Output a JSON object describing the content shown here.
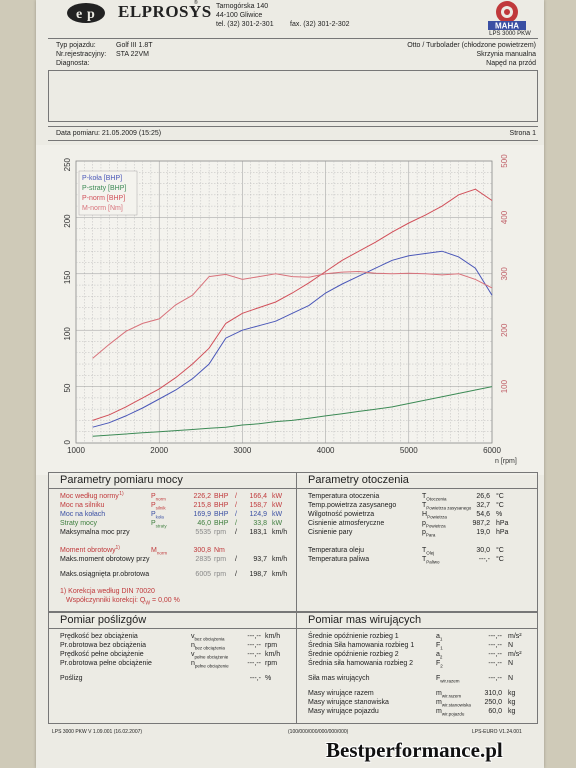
{
  "header": {
    "company": "ELPROSYS",
    "company_small": "®",
    "address1": "Tarnogórska 140",
    "address2": "44-100 Gliwice",
    "phone": "tel. (32) 301-2-301",
    "fax": "fax. (32) 301-2-302",
    "brand": "MAHA",
    "lps": "LPS 3000 PKW"
  },
  "vehicle": {
    "type_label": "Typ pojazdu:",
    "type_value": "Golf III 1.8T",
    "reg_label": "Nr.rejestracyjny:",
    "reg_value": "STA 22VM",
    "diag_label": "Diagnosta:",
    "engine": "Otto / Turbolader (chłodzone powietrzem)",
    "gearbox": "Skrzynia manualna",
    "drive": "Napęd na przód"
  },
  "measure": {
    "date_label": "Data pomiaru: 21.05.2009 (15:25)",
    "page_label": "Strona 1"
  },
  "chart_data": {
    "type": "line",
    "x": [
      1200,
      1400,
      1600,
      1800,
      2000,
      2200,
      2400,
      2600,
      2800,
      3000,
      3200,
      3400,
      3600,
      3800,
      4000,
      4200,
      4400,
      4600,
      4800,
      5000,
      5200,
      5400,
      5600,
      5800,
      6000
    ],
    "xlabel": "n [rpm]",
    "xticks": [
      "1000",
      "2000",
      "3000",
      "4000",
      "5000",
      "6000"
    ],
    "xlim": [
      1000,
      6000
    ],
    "ylim_left": [
      0,
      250
    ],
    "yticks_left": [
      "0",
      "50",
      "100",
      "150",
      "200",
      "250"
    ],
    "ylim_right": [
      0,
      500
    ],
    "yticks_right": [
      "100",
      "200",
      "300",
      "400",
      "500"
    ],
    "legend_position": "top-left",
    "grid": true,
    "series": [
      {
        "name": "P-koła [BHP]",
        "axis": "left",
        "color": "#4a57b8",
        "values": [
          14,
          18,
          24,
          31,
          39,
          47,
          57,
          70,
          93,
          100,
          104,
          108,
          115,
          122,
          133,
          141,
          148,
          155,
          162,
          166,
          168,
          170,
          165,
          155,
          131
        ]
      },
      {
        "name": "P-straty [BHP]",
        "axis": "left",
        "color": "#3c8a55",
        "values": [
          6,
          7,
          8,
          9,
          10,
          11,
          12,
          13,
          14,
          16,
          17,
          19,
          20,
          22,
          24,
          26,
          28,
          30,
          32,
          35,
          38,
          41,
          44,
          47,
          50
        ]
      },
      {
        "name": "P-norm [BHP]",
        "axis": "left",
        "color": "#d1505a",
        "values": [
          20,
          25,
          32,
          40,
          48,
          58,
          70,
          84,
          106,
          115,
          120,
          125,
          133,
          142,
          152,
          162,
          170,
          178,
          187,
          195,
          202,
          210,
          220,
          225,
          215
        ]
      },
      {
        "name": "M-norm [Nm]",
        "axis": "right",
        "color": "#d8727b",
        "values": [
          150,
          175,
          198,
          212,
          220,
          245,
          262,
          295,
          299,
          290,
          295,
          300,
          295,
          294,
          300,
          303,
          304,
          301,
          300,
          301,
          300,
          298,
          300,
          290,
          275
        ]
      }
    ]
  },
  "power": {
    "title": "Parametry pomiaru mocy",
    "rows": [
      {
        "label": "Moc według normy",
        "sup": "1)",
        "sym": "P",
        "sub": "norm",
        "v1": "226,2",
        "u1": "BHP",
        "sep": "/",
        "v2": "166,4",
        "u2": "kW",
        "color": "red"
      },
      {
        "label": "Moc na silniku",
        "sup": "",
        "sym": "P",
        "sub": "silnik",
        "v1": "215,8",
        "u1": "BHP",
        "sep": "/",
        "v2": "158,7",
        "u2": "kW",
        "color": "red"
      },
      {
        "label": "Moc na kołach",
        "sup": "",
        "sym": "P",
        "sub": "koła",
        "v1": "169,9",
        "u1": "BHP",
        "sep": "/",
        "v2": "124,9",
        "u2": "kW",
        "color": "blue"
      },
      {
        "label": "Straty mocy",
        "sup": "",
        "sym": "P",
        "sub": "straty",
        "v1": "46,0",
        "u1": "BHP",
        "sep": "/",
        "v2": "33,8",
        "u2": "kW",
        "color": "green"
      },
      {
        "label": "Maksymalna moc przy",
        "sup": "",
        "sym": "",
        "sub": "",
        "v1": "5535",
        "u1": "rpm",
        "sep": "/",
        "v2": "183,1",
        "u2": "km/h",
        "color": "black"
      },
      {
        "label": "Moment obrotowy",
        "sup": "1)",
        "sym": "M",
        "sub": "norm",
        "v1": "300,8",
        "u1": "Nm",
        "sep": "",
        "v2": "",
        "u2": "",
        "color": "red"
      },
      {
        "label": "Maks.moment obrotowy przy",
        "sup": "",
        "sym": "",
        "sub": "",
        "v1": "2835",
        "u1": "rpm",
        "sep": "/",
        "v2": "93,7",
        "u2": "km/h",
        "color": "black"
      },
      {
        "label": "Maks.osiągnięta pr.obrotowa",
        "sup": "",
        "sym": "",
        "sub": "",
        "v1": "6005",
        "u1": "rpm",
        "sep": "/",
        "v2": "198,7",
        "u2": "km/h",
        "color": "black"
      }
    ],
    "note1": "1) Korekcja według DIN 70020",
    "note2": "Współczynniki korekcji: Q",
    "note2_sub": "W",
    "note2_val": "= 0,00 %"
  },
  "env": {
    "title": "Parametry otoczenia",
    "rows": [
      {
        "label": "Temperatura otoczenia",
        "sym": "T",
        "sub": "Otoczenia",
        "val": "26,6",
        "unit": "°C"
      },
      {
        "label": "Temp.powietrza zasysanego",
        "sym": "T",
        "sub": "Powietrza zasysanego",
        "val": "32,7",
        "unit": "°C"
      },
      {
        "label": "Wilgotność powietrza",
        "sym": "H",
        "sub": "Powietrza",
        "val": "54,6",
        "unit": "%"
      },
      {
        "label": "Cisnienie atmosferyczne",
        "sym": "p",
        "sub": "Powietrza",
        "val": "987,2",
        "unit": "hPa"
      },
      {
        "label": "Cisnienie pary",
        "sym": "p",
        "sub": "Para",
        "val": "19,0",
        "unit": "hPa"
      },
      {
        "label": "Temperatura oleju",
        "sym": "T",
        "sub": "Olej",
        "val": "30,0",
        "unit": "°C"
      },
      {
        "label": "Temperatura paliwa",
        "sym": "T",
        "sub": "Paliwo",
        "val": "---,-",
        "unit": "°C"
      }
    ]
  },
  "slip": {
    "title": "Pomiar poślizgów",
    "rows": [
      {
        "label": "Prędkość bez obciążenia",
        "sym": "v",
        "sub": "bez obciążenia",
        "val": "---,--",
        "unit": "km/h"
      },
      {
        "label": "Pr.obrotowa bez obciążenia",
        "sym": "n",
        "sub": "bez obciążenia",
        "val": "---,--",
        "unit": "rpm"
      },
      {
        "label": "Prędkość pełne obciążenie",
        "sym": "v",
        "sub": "pełne obciążenie",
        "val": "---,--",
        "unit": "km/h"
      },
      {
        "label": "Pr.obrotowa pełne obciążenie",
        "sym": "n",
        "sub": "pełne obciążenie",
        "val": "---,--",
        "unit": "rpm"
      },
      {
        "label": "Poślizg",
        "sym": "",
        "sub": "",
        "val": "---,-",
        "unit": "%"
      }
    ]
  },
  "mass": {
    "title": "Pomiar mas wirujących",
    "rows": [
      {
        "label": "Średnie opóźnienie rozbieg 1",
        "sym": "a",
        "sub": "1",
        "val": "---,--",
        "unit": "m/s²"
      },
      {
        "label": "Średnia Siła hamowania rozbieg 1",
        "sym": "F",
        "sub": "1",
        "val": "---,--",
        "unit": "N"
      },
      {
        "label": "Średnie opóźnienie rozbieg 2",
        "sym": "a",
        "sub": "2",
        "val": "---,--",
        "unit": "m/s²"
      },
      {
        "label": "Średnia siła hamowania rozbieg 2",
        "sym": "F",
        "sub": "2",
        "val": "---,--",
        "unit": "N"
      },
      {
        "label": "Siła mas wirujących",
        "sym": "F",
        "sub": "wir.razem",
        "val": "---,--",
        "unit": "N"
      },
      {
        "label": "Masy wirujące razem",
        "sym": "m",
        "sub": "wir.razem",
        "val": "310,0",
        "unit": "kg"
      },
      {
        "label": "Masy wirujące stanowiska",
        "sym": "m",
        "sub": "wir.stanowiska",
        "val": "250,0",
        "unit": "kg"
      },
      {
        "label": "Masy wirujące pojazdu",
        "sym": "m",
        "sub": "wir.pojazdu",
        "val": "60,0",
        "unit": "kg"
      }
    ]
  },
  "footer": {
    "left": "LPS 3000 PKW V 1.09.001 (16.02.2007)",
    "mid": "(100/000/000/000/000/000)",
    "right": "LPS-EURO V1.24.001"
  },
  "watermark": "Bestperformance.pl"
}
